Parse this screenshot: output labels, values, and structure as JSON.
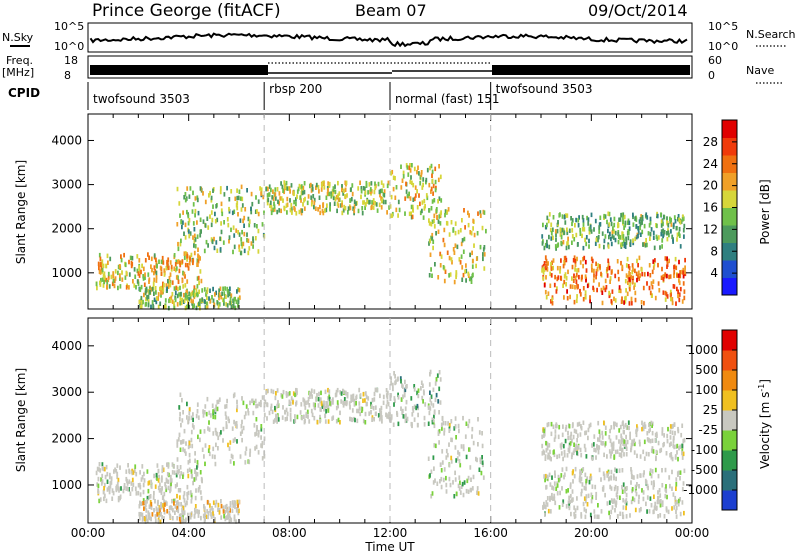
{
  "header": {
    "station": "Prince George (fitACF)",
    "beam": "Beam 07",
    "date": "09/Oct/2014"
  },
  "top_panels": {
    "nsky_label": "N.Sky",
    "nsky_ticks": [
      "10^5",
      "10^0"
    ],
    "nsearch_label": "N.Search",
    "nsearch_ticks": [
      "10^5",
      "10^0"
    ],
    "freq_label": "Freq.",
    "freq_unit": "[MHz]",
    "freq_ticks": [
      "18",
      "8"
    ],
    "nave_label": "Nave",
    "nave_ticks": [
      "60",
      "0"
    ],
    "cpid_label": "CPID",
    "cpid_segments": [
      {
        "start_h": 0,
        "end_h": 7,
        "label": "twofsound 3503"
      },
      {
        "start_h": 7,
        "end_h": 12,
        "label": "rbsp 200"
      },
      {
        "start_h": 12,
        "end_h": 16,
        "label": "normal (fast) 151"
      },
      {
        "start_h": 16,
        "end_h": 24,
        "label": "twofsound 3503"
      }
    ]
  },
  "chart_data": [
    {
      "type": "heatmap",
      "name": "power-panel",
      "ylabel": "Slant Range [km]",
      "xlabel": "",
      "xlim": [
        0,
        24
      ],
      "ylim": [
        180,
        4600
      ],
      "y_ticks": [
        "1000",
        "2000",
        "3000",
        "4000"
      ],
      "colorbar": {
        "label": "Power [dB]",
        "ticks": [
          "4",
          "8",
          "12",
          "16",
          "20",
          "24",
          "28"
        ],
        "colors": [
          "#1a1aff",
          "#1f4fd0",
          "#2f7f80",
          "#4c9a5c",
          "#6fc04a",
          "#d6d63a",
          "#f0a028",
          "#f07010",
          "#f03a0a",
          "#e00000"
        ]
      },
      "scatter_bands": [
        {
          "h_start": 0.3,
          "h_end": 4.5,
          "range_lo": 700,
          "range_hi": 1500,
          "level": 0.6
        },
        {
          "h_start": 3.5,
          "h_end": 7,
          "range_lo": 1500,
          "range_hi": 3000,
          "level": 0.45
        },
        {
          "h_start": 7,
          "h_end": 12,
          "range_lo": 2400,
          "range_hi": 3100,
          "level": 0.5
        },
        {
          "h_start": 12,
          "h_end": 14,
          "range_lo": 2300,
          "range_hi": 3500,
          "level": 0.55
        },
        {
          "h_start": 13.5,
          "h_end": 15.8,
          "range_lo": 800,
          "range_hi": 2500,
          "level": 0.55
        },
        {
          "h_start": 2,
          "h_end": 6,
          "range_lo": 250,
          "range_hi": 700,
          "level": 0.45
        },
        {
          "h_start": 18,
          "h_end": 23.7,
          "range_lo": 350,
          "range_hi": 1400,
          "level": 0.75
        },
        {
          "h_start": 18,
          "h_end": 23.7,
          "range_lo": 1600,
          "range_hi": 2400,
          "level": 0.4
        }
      ]
    },
    {
      "type": "heatmap",
      "name": "velocity-panel",
      "ylabel": "Slant Range [km]",
      "xlabel": "Time UT",
      "xlim": [
        0,
        24
      ],
      "ylim": [
        180,
        4600
      ],
      "y_ticks": [
        "1000",
        "2000",
        "3000",
        "4000"
      ],
      "x_ticks": [
        "00:00",
        "04:00",
        "08:00",
        "12:00",
        "16:00",
        "20:00",
        "00:00"
      ],
      "colorbar": {
        "label": "Velocity [m s^-1]",
        "ticks": [
          "1000",
          "500",
          "100",
          "25",
          "-25",
          "-100",
          "-500",
          "-1000"
        ],
        "colors": [
          "#1c3fd0",
          "#2a6f7a",
          "#2e9a4a",
          "#7ad23a",
          "#c8c8c0",
          "#f0c020",
          "#f08a10",
          "#f05010",
          "#e00000"
        ]
      },
      "scatter_bands": [
        {
          "h_start": 0.3,
          "h_end": 4.5,
          "range_lo": 700,
          "range_hi": 1500,
          "level": 0.45
        },
        {
          "h_start": 3.5,
          "h_end": 7,
          "range_lo": 1500,
          "range_hi": 3000,
          "level": 0.45
        },
        {
          "h_start": 7,
          "h_end": 12,
          "range_lo": 2400,
          "range_hi": 3100,
          "level": 0.45
        },
        {
          "h_start": 12,
          "h_end": 14,
          "range_lo": 2300,
          "range_hi": 3500,
          "level": 0.3
        },
        {
          "h_start": 13.5,
          "h_end": 15.8,
          "range_lo": 800,
          "range_hi": 2500,
          "level": 0.4
        },
        {
          "h_start": 2,
          "h_end": 6,
          "range_lo": 250,
          "range_hi": 700,
          "level": 0.6
        },
        {
          "h_start": 18,
          "h_end": 23.7,
          "range_lo": 350,
          "range_hi": 1400,
          "level": 0.45
        },
        {
          "h_start": 18,
          "h_end": 23.7,
          "range_lo": 1600,
          "range_hi": 2400,
          "level": 0.45
        }
      ]
    }
  ]
}
